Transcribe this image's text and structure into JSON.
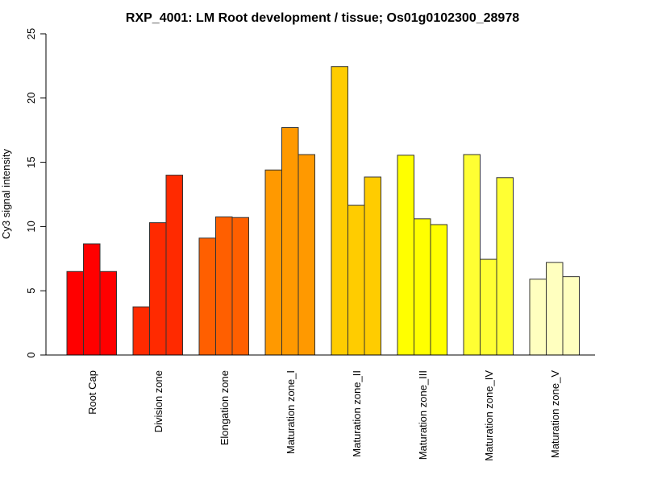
{
  "chart_data": {
    "type": "bar",
    "title": "RXP_4001: LM Root development / tissue; Os01g0102300_28978",
    "xlabel": "",
    "ylabel": "Cy3 signal intensity",
    "ylim": [
      0,
      25
    ],
    "yticks": [
      0,
      5,
      10,
      15,
      20,
      25
    ],
    "grid": false,
    "legend": "none",
    "categories": [
      "Root Cap",
      "Division zone",
      "Elongation zone",
      "Maturation zone_I",
      "Maturation zone_II",
      "Maturation zone_III",
      "Maturation zone_IV",
      "Maturation zone_V"
    ],
    "colors": [
      "#ff0000",
      "#ff2a00",
      "#ff5f00",
      "#ff9900",
      "#ffcc00",
      "#ffff00",
      "#ffff33",
      "#ffffbf"
    ],
    "groups": [
      [
        6.5,
        8.65,
        6.5
      ],
      [
        3.75,
        10.3,
        14.0
      ],
      [
        9.1,
        10.75,
        10.7
      ],
      [
        14.4,
        17.7,
        15.6
      ],
      [
        22.45,
        11.65,
        13.85
      ],
      [
        15.55,
        10.6,
        10.15
      ],
      [
        15.6,
        7.45,
        13.8
      ],
      [
        5.9,
        7.2,
        6.1
      ]
    ]
  }
}
